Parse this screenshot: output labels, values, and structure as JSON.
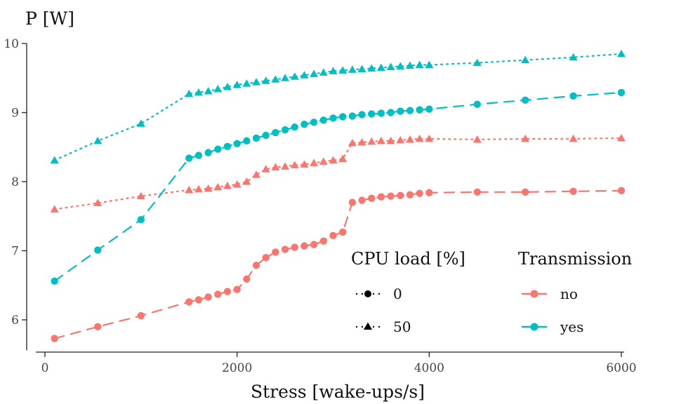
{
  "chart_data": {
    "type": "line",
    "xlabel": "Stress [wake-ups/s]",
    "ylabel": "P [W]",
    "xlim": [
      0,
      6000
    ],
    "ylim": [
      5.7,
      10.0
    ],
    "xticks": [
      0,
      2000,
      4000,
      6000
    ],
    "yticks": [
      6,
      7,
      8,
      9,
      10
    ],
    "grid": false,
    "colors": {
      "no": "#F8766D",
      "yes": "#00BFC4"
    },
    "legend": {
      "position": "bottom-right",
      "cpu_title": "CPU load [%]",
      "cpu_items": [
        {
          "label": "0",
          "shape": "circle",
          "linetype": "dashed"
        },
        {
          "label": "50",
          "shape": "triangle",
          "linetype": "dotted"
        }
      ],
      "tx_title": "Transmission",
      "tx_items": [
        {
          "label": "no",
          "color": "#F8766D"
        },
        {
          "label": "yes",
          "color": "#00BFC4"
        }
      ]
    },
    "series": [
      {
        "transmission": "no",
        "cpu_load": "0",
        "color": "#F8766D",
        "shape": "circle",
        "linetype": "dashed",
        "x": [
          100,
          550,
          1000,
          1500,
          1600,
          1700,
          1800,
          1900,
          2000,
          2100,
          2200,
          2300,
          2400,
          2500,
          2600,
          2700,
          2800,
          2900,
          3000,
          3100,
          3200,
          3300,
          3400,
          3500,
          3600,
          3700,
          3800,
          3900,
          4000,
          4500,
          5000,
          5500,
          6000
        ],
        "y": [
          5.73,
          5.9,
          6.06,
          6.26,
          6.29,
          6.33,
          6.37,
          6.41,
          6.44,
          6.59,
          6.79,
          6.9,
          6.98,
          7.02,
          7.05,
          7.07,
          7.09,
          7.14,
          7.22,
          7.27,
          7.7,
          7.73,
          7.76,
          7.78,
          7.79,
          7.8,
          7.81,
          7.83,
          7.84,
          7.85,
          7.85,
          7.86,
          7.87
        ]
      },
      {
        "transmission": "no",
        "cpu_load": "50",
        "color": "#F8766D",
        "shape": "triangle",
        "linetype": "dotted",
        "x": [
          100,
          550,
          1000,
          1500,
          1600,
          1700,
          1800,
          1900,
          2000,
          2100,
          2200,
          2300,
          2400,
          2500,
          2600,
          2700,
          2800,
          2900,
          3000,
          3100,
          3200,
          3300,
          3400,
          3500,
          3600,
          3700,
          3800,
          3900,
          4000,
          4500,
          5000,
          5500,
          6000
        ],
        "y": [
          7.6,
          7.69,
          7.79,
          7.88,
          7.89,
          7.9,
          7.92,
          7.94,
          7.96,
          8.0,
          8.1,
          8.18,
          8.21,
          8.22,
          8.24,
          8.25,
          8.27,
          8.29,
          8.31,
          8.33,
          8.56,
          8.57,
          8.58,
          8.59,
          8.59,
          8.6,
          8.61,
          8.62,
          8.62,
          8.61,
          8.62,
          8.62,
          8.63
        ]
      },
      {
        "transmission": "yes",
        "cpu_load": "0",
        "color": "#00BFC4",
        "shape": "circle",
        "linetype": "dashed",
        "x": [
          100,
          550,
          1000,
          1500,
          1600,
          1700,
          1800,
          1900,
          2000,
          2100,
          2200,
          2300,
          2400,
          2500,
          2600,
          2700,
          2800,
          2900,
          3000,
          3100,
          3200,
          3300,
          3400,
          3500,
          3600,
          3700,
          3800,
          3900,
          4000,
          4500,
          5000,
          5500,
          6000
        ],
        "y": [
          6.56,
          7.01,
          7.45,
          8.34,
          8.38,
          8.42,
          8.47,
          8.51,
          8.55,
          8.59,
          8.63,
          8.67,
          8.71,
          8.75,
          8.79,
          8.83,
          8.86,
          8.89,
          8.92,
          8.94,
          8.95,
          8.97,
          8.98,
          8.99,
          9.0,
          9.02,
          9.03,
          9.04,
          9.05,
          9.12,
          9.18,
          9.24,
          9.29
        ]
      },
      {
        "transmission": "yes",
        "cpu_load": "50",
        "color": "#00BFC4",
        "shape": "triangle",
        "linetype": "dotted",
        "x": [
          100,
          550,
          1000,
          1500,
          1600,
          1700,
          1800,
          1900,
          2000,
          2100,
          2200,
          2300,
          2400,
          2500,
          2600,
          2700,
          2800,
          2900,
          3000,
          3100,
          3200,
          3300,
          3400,
          3500,
          3600,
          3700,
          3800,
          3900,
          4000,
          4500,
          5000,
          5500,
          6000
        ],
        "y": [
          8.31,
          8.59,
          8.84,
          9.27,
          9.29,
          9.31,
          9.34,
          9.37,
          9.4,
          9.42,
          9.44,
          9.46,
          9.48,
          9.5,
          9.52,
          9.54,
          9.56,
          9.58,
          9.6,
          9.61,
          9.62,
          9.63,
          9.64,
          9.65,
          9.66,
          9.67,
          9.68,
          9.69,
          9.69,
          9.72,
          9.76,
          9.8,
          9.85
        ]
      }
    ]
  }
}
